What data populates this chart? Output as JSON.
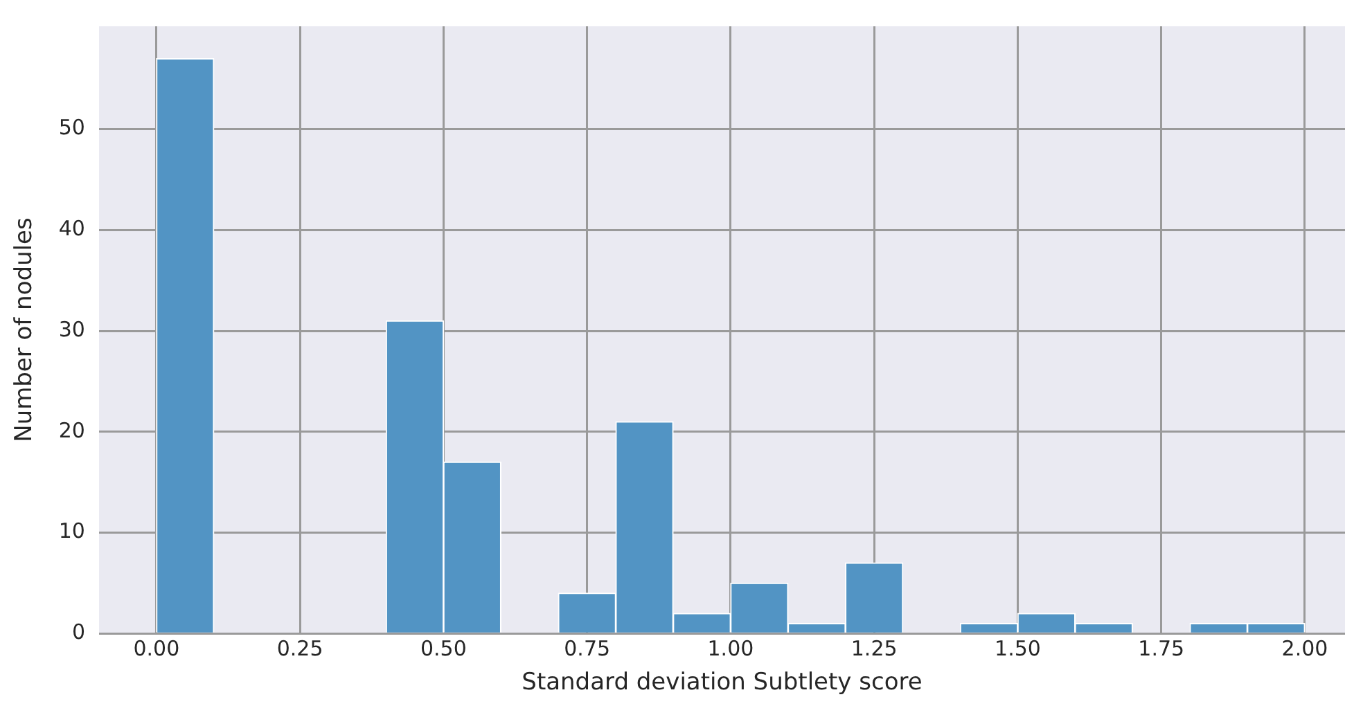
{
  "chart_data": {
    "type": "histogram",
    "xlabel": "Standard deviation Subtlety score",
    "ylabel": "Number of nodules",
    "bins": [
      0,
      0.1,
      0.2,
      0.3,
      0.4,
      0.5,
      0.6,
      0.7,
      0.8,
      0.9,
      1.0,
      1.1,
      1.2,
      1.3,
      1.4,
      1.5,
      1.6,
      1.7,
      1.8,
      1.9,
      2.0
    ],
    "values": [
      57,
      0,
      0,
      0,
      31,
      17,
      0,
      4,
      21,
      2,
      5,
      1,
      7,
      0,
      1,
      2,
      1,
      0,
      1,
      1
    ],
    "color": "#5294c4",
    "xlim": [
      -0.1,
      2.07
    ],
    "ylim": [
      0,
      60.2
    ],
    "xticks": [
      {
        "value": 0,
        "label": "0.00"
      },
      {
        "value": 0.25,
        "label": "0.25"
      },
      {
        "value": 0.5,
        "label": "0.50"
      },
      {
        "value": 0.75,
        "label": "0.75"
      },
      {
        "value": 1,
        "label": "1.00"
      },
      {
        "value": 1.25,
        "label": "1.25"
      },
      {
        "value": 1.5,
        "label": "1.50"
      },
      {
        "value": 1.75,
        "label": "1.75"
      },
      {
        "value": 2,
        "label": "2.00"
      }
    ],
    "yticks": [
      0,
      10,
      20,
      30,
      40,
      50
    ],
    "grid": true
  }
}
